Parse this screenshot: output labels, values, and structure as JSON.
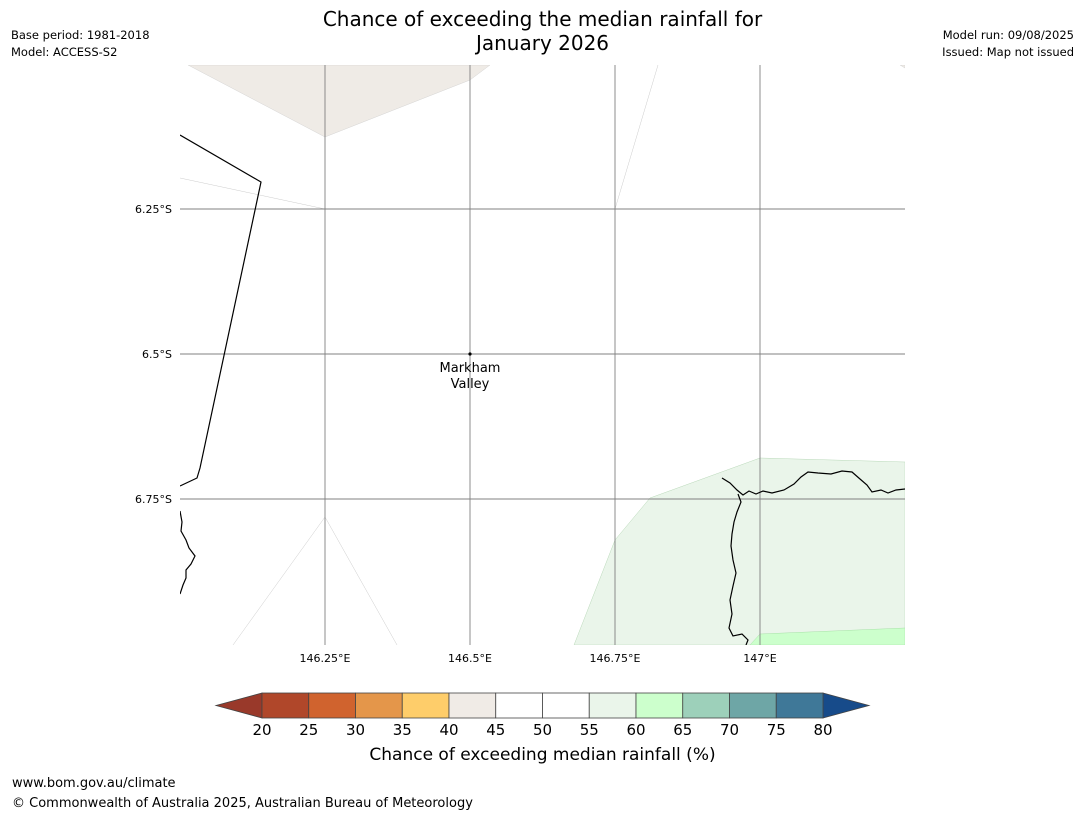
{
  "header": {
    "title_line1": "Chance of exceeding the median rainfall for",
    "title_line2": "January 2026",
    "base_period": "Base period: 1981-2018",
    "model": "Model: ACCESS-S2",
    "model_run": "Model run: 09/08/2025",
    "issued": "Issued: Map not issued"
  },
  "map": {
    "lat_labels": [
      "6.25°S",
      "6.5°S",
      "6.75°S"
    ],
    "lon_labels": [
      "146.25°E",
      "146.5°E",
      "146.75°E",
      "147°E"
    ],
    "place": {
      "name_line1": "Markham",
      "name_line2": "Valley"
    },
    "fill_colors": {
      "band_40_45": "#efebe6",
      "band_55_60": "#eaf5ea",
      "band_60_65": "#ccffcc"
    }
  },
  "colorbar": {
    "ticks": [
      "20",
      "25",
      "30",
      "35",
      "40",
      "45",
      "50",
      "55",
      "60",
      "65",
      "70",
      "75",
      "80"
    ],
    "colors": [
      "#b0472a",
      "#d0632e",
      "#e4964a",
      "#fecd6a",
      "#f0ebe6",
      "#ffffff",
      "#ffffff",
      "#eaf5ea",
      "#ccffcc",
      "#9dd0ba",
      "#6ea6a6",
      "#3f7898"
    ],
    "under_color": "#99392a",
    "over_color": "#174b8a",
    "label": "Chance of exceeding median rainfall (%)"
  },
  "footer": {
    "url": "www.bom.gov.au/climate",
    "copyright": "© Commonwealth of Australia 2025, Australian Bureau of Meteorology"
  }
}
